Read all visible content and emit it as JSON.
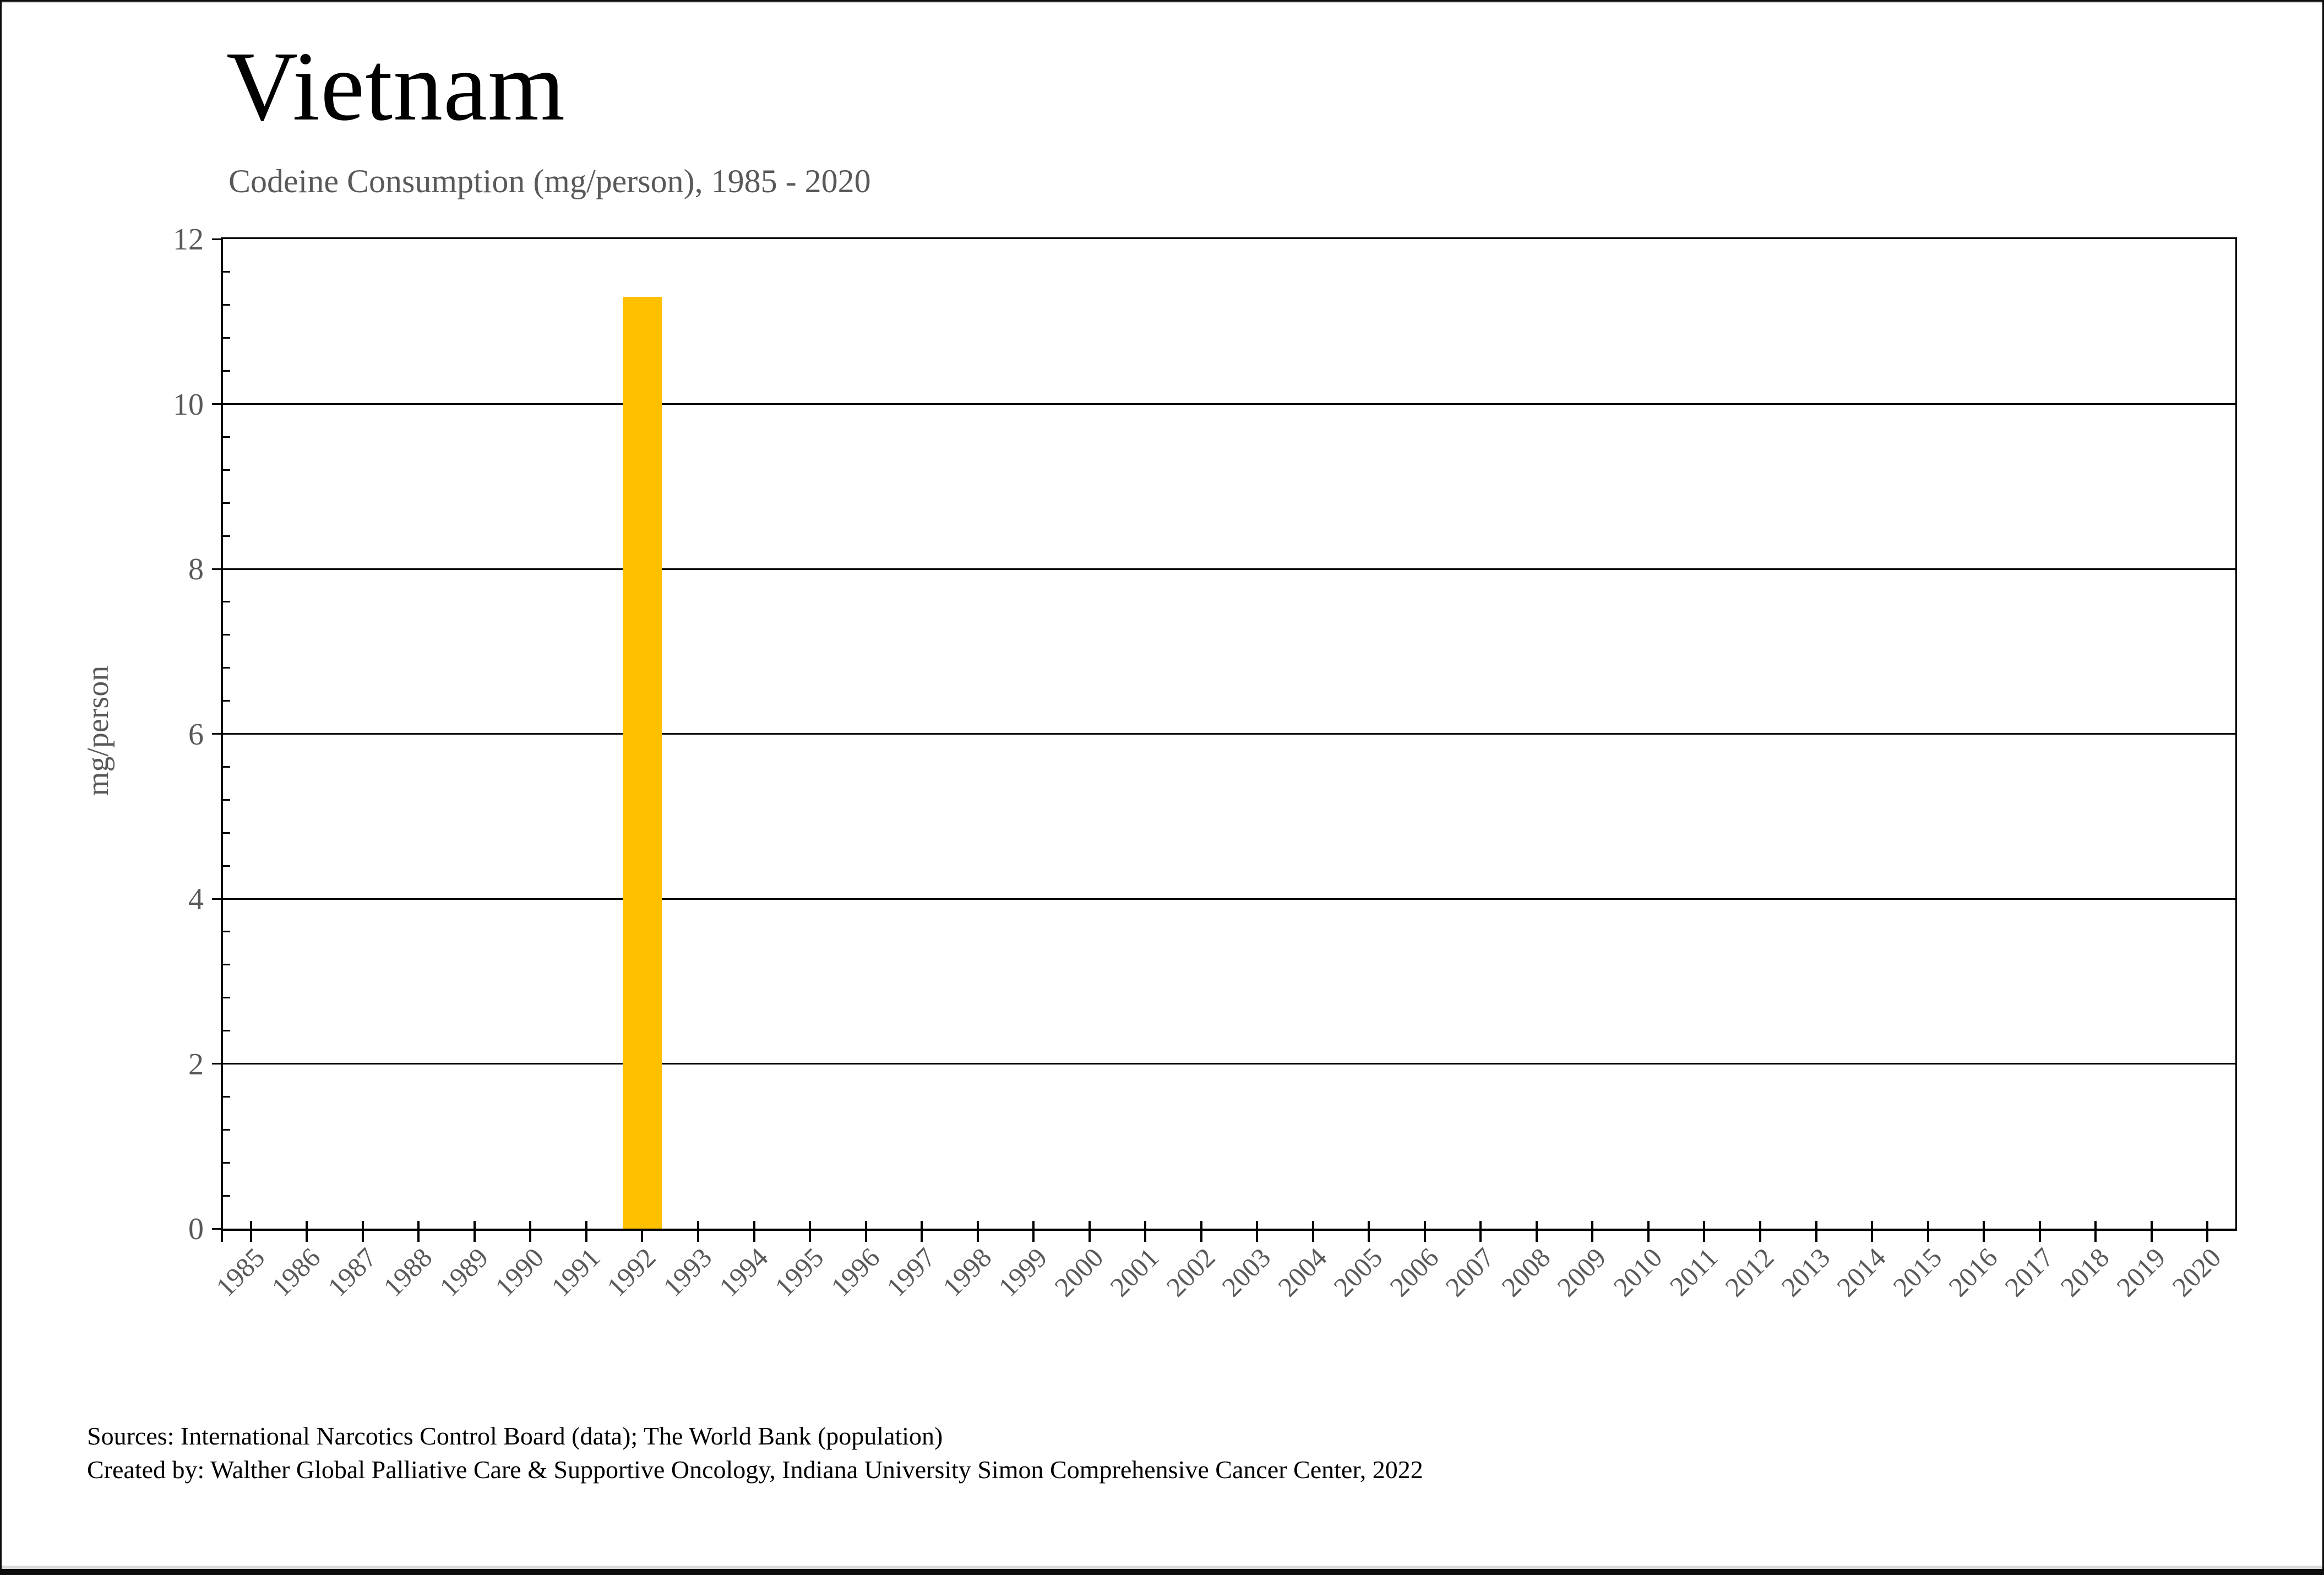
{
  "chart_data": {
    "type": "bar",
    "title": "Vietnam",
    "subtitle": "Codeine Consumption (mg/person), 1985 - 2020",
    "ylabel": "mg/person",
    "ylim": [
      0,
      12
    ],
    "ytick_interval": 2,
    "yminor_interval": 0.4,
    "ytick_labels": [
      "0",
      "2",
      "4",
      "6",
      "8",
      "10",
      "12"
    ],
    "grid": true,
    "legend": false,
    "bar_color": "#FFC000",
    "bar_width_fraction": 0.7,
    "categories": [
      "1985",
      "1986",
      "1987",
      "1988",
      "1989",
      "1990",
      "1991",
      "1992",
      "1993",
      "1994",
      "1995",
      "1996",
      "1997",
      "1998",
      "1999",
      "2000",
      "2001",
      "2002",
      "2003",
      "2004",
      "2005",
      "2006",
      "2007",
      "2008",
      "2009",
      "2010",
      "2011",
      "2012",
      "2013",
      "2014",
      "2015",
      "2016",
      "2017",
      "2018",
      "2019",
      "2020"
    ],
    "values": [
      0,
      0,
      0,
      0,
      0,
      0,
      0,
      11.3,
      0,
      0,
      0,
      0,
      0,
      0,
      0,
      0,
      0,
      0,
      0,
      0,
      0,
      0,
      0,
      0,
      0,
      0,
      0,
      0,
      0,
      0,
      0,
      0,
      0,
      0,
      0,
      0
    ]
  },
  "colors": {
    "axis": "#000000",
    "gridline": "#000000",
    "tick_label": "#595959",
    "title": "#000000",
    "subtitle": "#595959",
    "bar": "#FFC000",
    "background": "#ffffff"
  },
  "sources": {
    "line1": "Sources: International Narcotics Control Board (data); The World Bank (population)",
    "line2": "Created by: Walther Global Palliative Care & Supportive Oncology, Indiana University Simon Comprehensive Cancer Center, 2022"
  }
}
